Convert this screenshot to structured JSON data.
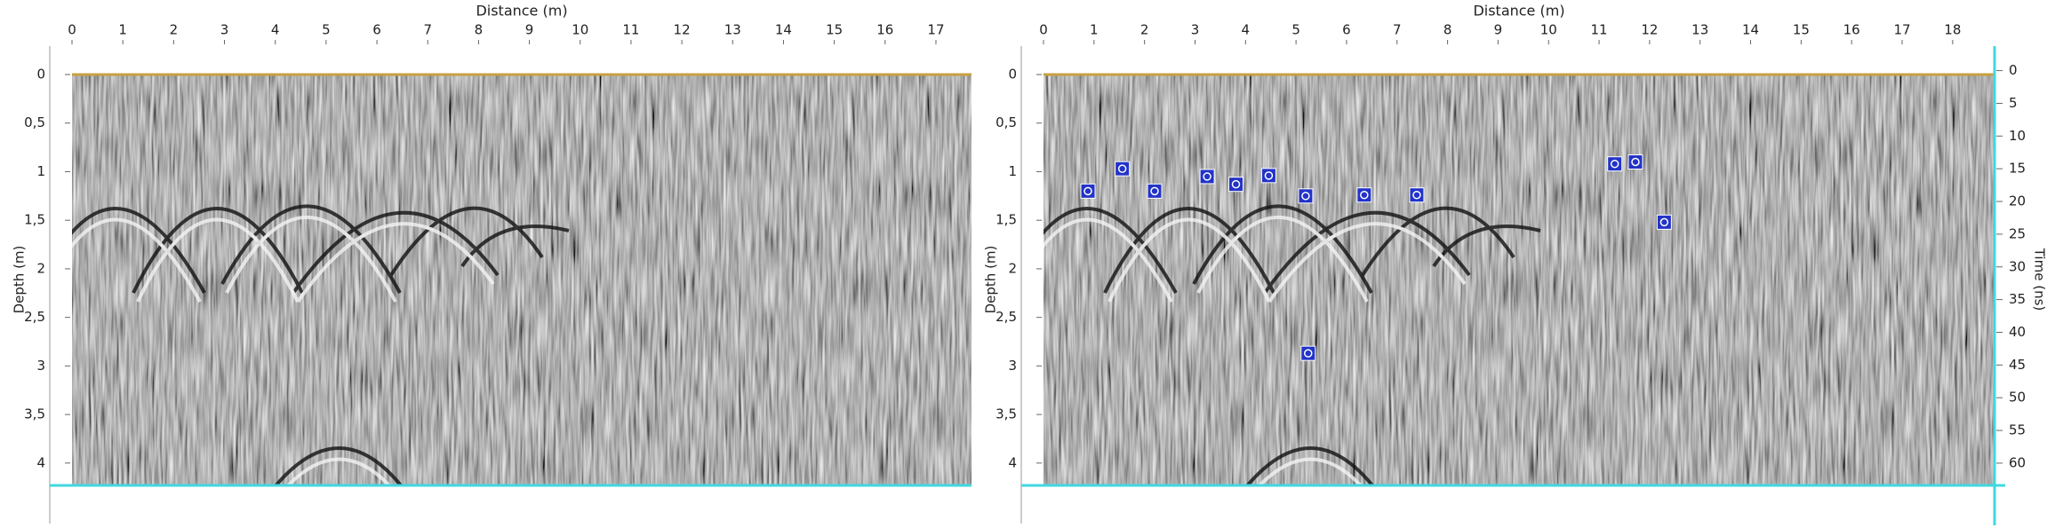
{
  "chart_data": [
    {
      "type": "image",
      "title": "Distance (m)",
      "y_label": "Depth (m)",
      "xlim": [
        0,
        17.7
      ],
      "ylim": [
        0,
        4.23
      ],
      "y_inverted": true,
      "xticks": [
        0,
        1,
        2,
        3,
        4,
        5,
        6,
        7,
        8,
        9,
        10,
        11,
        12,
        13,
        14,
        15,
        16,
        17
      ],
      "yticks": [
        0,
        {
          "value": 0.5,
          "label": "0,5"
        },
        1,
        {
          "value": 1.5,
          "label": "1,5"
        },
        2,
        {
          "value": 2.5,
          "label": "2,5"
        },
        3,
        {
          "value": 3.5,
          "label": "3,5"
        },
        4
      ]
    },
    {
      "type": "scatter",
      "title": "Distance (m)",
      "y_label": "Depth (m)",
      "y2_label": "Time (ns)",
      "xlim": [
        0,
        18.83
      ],
      "ylim": [
        0,
        4.23
      ],
      "y_inverted": true,
      "y2lim": [
        0.6,
        63.4
      ],
      "xticks": [
        0,
        1,
        2,
        3,
        4,
        5,
        6,
        7,
        8,
        9,
        10,
        11,
        12,
        13,
        14,
        15,
        16,
        17,
        18
      ],
      "yticks": [
        0,
        {
          "value": 0.5,
          "label": "0,5"
        },
        1,
        {
          "value": 1.5,
          "label": "1,5"
        },
        2,
        {
          "value": 2.5,
          "label": "2,5"
        },
        3,
        {
          "value": 3.5,
          "label": "3,5"
        },
        4
      ],
      "y2ticks": [
        0,
        5,
        10,
        15,
        20,
        25,
        30,
        35,
        40,
        45,
        50,
        55,
        60
      ],
      "marker_color": "#2233c8",
      "x": [
        0.88,
        1.56,
        2.2,
        3.24,
        3.81,
        4.46,
        5.19,
        6.35,
        7.39,
        5.24,
        11.31,
        11.72,
        12.29
      ],
      "values": [
        1.2,
        0.97,
        1.2,
        1.05,
        1.13,
        1.04,
        1.25,
        1.24,
        1.24,
        2.87,
        0.92,
        0.9,
        1.52
      ]
    }
  ]
}
